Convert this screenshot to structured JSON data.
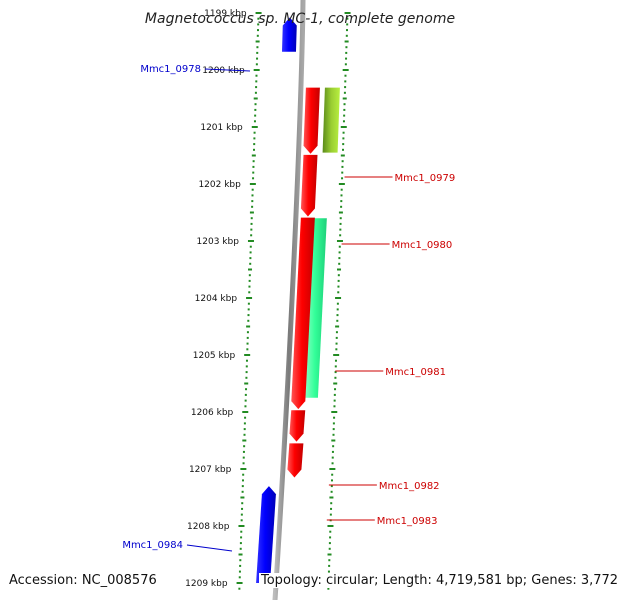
{
  "title": "Magnetococcus sp. MC-1, complete genome",
  "footer": {
    "accession": "Accession: NC_008576",
    "topology": "Topology: circular; Length: 4,719,581 bp; Genes: 3,772"
  },
  "colors": {
    "forward_gene": "#0000ff",
    "reverse_gene": "#ff0000",
    "feature_yellowgreen": "#9acd32",
    "feature_springgreen": "#33ff99",
    "backbone": "#8c8c8c",
    "ruler": "#228b22",
    "forward_label": "#0000cc",
    "reverse_label": "#cc0000"
  },
  "chart_data": {
    "type": "genome-map",
    "range_kbp": [
      1199,
      1209
    ],
    "ruler_ticks": [
      {
        "kbp": 1199,
        "label": "1199 kbp"
      },
      {
        "kbp": 1200,
        "label": "1200 kbp"
      },
      {
        "kbp": 1201,
        "label": "1201 kbp"
      },
      {
        "kbp": 1202,
        "label": "1202 kbp"
      },
      {
        "kbp": 1203,
        "label": "1203 kbp"
      },
      {
        "kbp": 1204,
        "label": "1204 kbp"
      },
      {
        "kbp": 1205,
        "label": "1205 kbp"
      },
      {
        "kbp": 1206,
        "label": "1206 kbp"
      },
      {
        "kbp": 1207,
        "label": "1207 kbp"
      },
      {
        "kbp": 1208,
        "label": "1208 kbp"
      },
      {
        "kbp": 1209,
        "label": "1209 kbp"
      }
    ],
    "genes": [
      {
        "name": "Mmc1_0978",
        "strand": "+",
        "start_kbp": 1199.08,
        "end_kbp": 1199.68
      },
      {
        "name": "Mmc1_0979",
        "strand": "-",
        "start_kbp": 1200.31,
        "end_kbp": 1201.47
      },
      {
        "name": "Mmc1_0980",
        "strand": "-",
        "start_kbp": 1201.49,
        "end_kbp": 1202.57
      },
      {
        "name": "Mmc1_0981",
        "strand": "-",
        "start_kbp": 1202.59,
        "end_kbp": 1205.95
      },
      {
        "name": "Mmc1_0982",
        "strand": "-",
        "start_kbp": 1205.97,
        "end_kbp": 1206.52
      },
      {
        "name": "Mmc1_0983",
        "strand": "-",
        "start_kbp": 1206.55,
        "end_kbp": 1207.15
      },
      {
        "name": "Mmc1_0984",
        "strand": "+",
        "start_kbp": 1207.3,
        "end_kbp": 1209.0
      }
    ],
    "features": [
      {
        "kind": "yellowgreen",
        "start_kbp": 1200.31,
        "end_kbp": 1201.45
      },
      {
        "kind": "springgreen",
        "start_kbp": 1202.6,
        "end_kbp": 1205.75
      }
    ]
  }
}
